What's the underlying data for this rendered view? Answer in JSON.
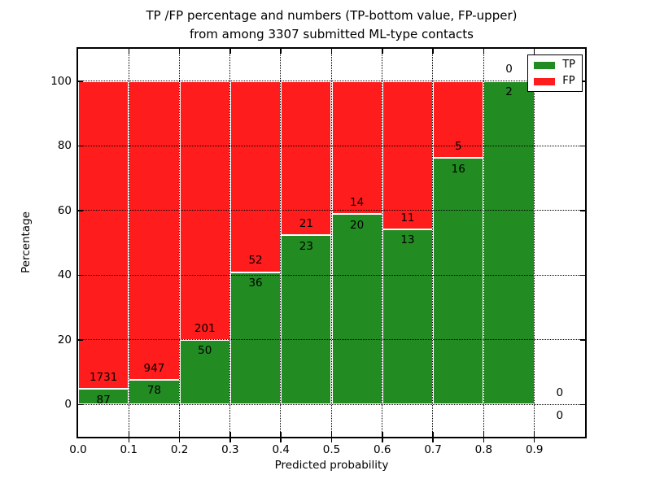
{
  "figure": {
    "title_line1": "TP /FP percentage and numbers (TP-bottom value, FP-upper)",
    "title_line2": "from among 3307 submitted ML-type contacts",
    "xlabel": "Predicted probability",
    "ylabel": "Percentage"
  },
  "legend": {
    "position": "upper right",
    "items": [
      {
        "label": "TP",
        "color": "#228b22"
      },
      {
        "label": "FP",
        "color": "#ff1c1c"
      }
    ]
  },
  "chart_data": {
    "type": "bar",
    "stacked": true,
    "title": "TP /FP percentage and numbers (TP-bottom value, FP-upper) from among 3307 submitted ML-type contacts",
    "xlabel": "Predicted probability",
    "ylabel": "Percentage",
    "total_contacts": 3307,
    "grid": "dotted",
    "legend_position": "upper right",
    "xlim": [
      0.0,
      1.0
    ],
    "ylim": [
      -10,
      110
    ],
    "bin_edges": [
      0.0,
      0.1,
      0.2,
      0.3,
      0.4,
      0.5,
      0.6,
      0.7,
      0.8,
      0.9,
      1.0
    ],
    "xticks": [
      "0.0",
      "0.1",
      "0.2",
      "0.3",
      "0.4",
      "0.5",
      "0.6",
      "0.7",
      "0.8",
      "0.9"
    ],
    "yticks": [
      0,
      20,
      40,
      60,
      80,
      100
    ],
    "series": [
      {
        "name": "TP",
        "color": "#228b22",
        "values": [
          87,
          78,
          50,
          36,
          23,
          20,
          13,
          16,
          2,
          0
        ]
      },
      {
        "name": "FP",
        "color": "#ff1c1c",
        "values": [
          1731,
          947,
          201,
          52,
          21,
          14,
          11,
          5,
          0,
          0
        ]
      }
    ],
    "tp_percent": [
      4.8,
      7.6,
      19.9,
      40.9,
      52.3,
      58.8,
      54.2,
      76.2,
      100.0,
      0.0
    ],
    "annotation_offset_pct": 3.5
  }
}
